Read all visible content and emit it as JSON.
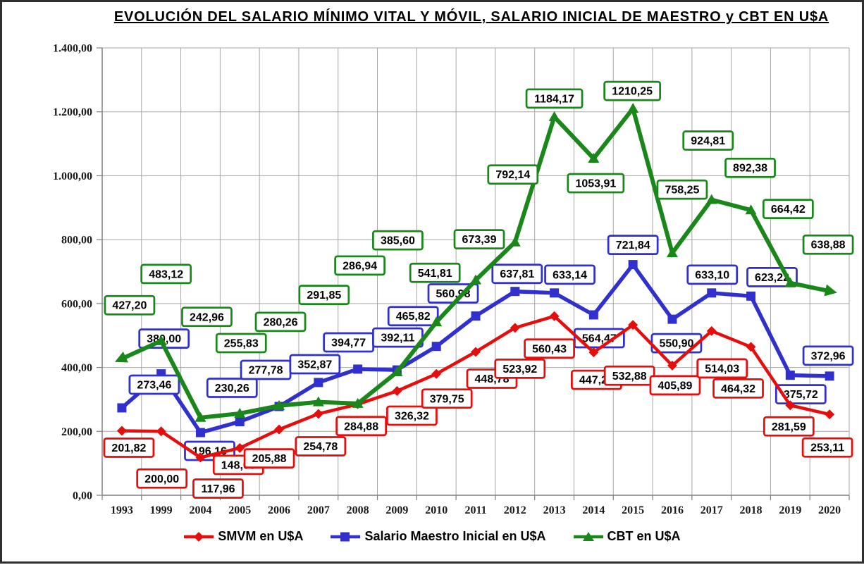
{
  "page": {
    "title": "EVOLUCIÓN DEL SALARIO MÍNIMO VITAL Y MÓVIL, SALARIO INICIAL DE MAESTRO y CBT EN U$A"
  },
  "chart_data": {
    "type": "line",
    "title": "EVOLUCIÓN DEL SALARIO MÍNIMO VITAL Y MÓVIL, SALARIO INICIAL DE MAESTRO y CBT EN U$A",
    "categories": [
      "1993",
      "1999",
      "2004",
      "2005",
      "2006",
      "2007",
      "2008",
      "2009",
      "2010",
      "2011",
      "2012",
      "2013",
      "2014",
      "2015",
      "2016",
      "2017",
      "2018",
      "2019",
      "2020"
    ],
    "series": [
      {
        "name": "SMVM en U$A",
        "color": "#e60d0d",
        "marker": "diamond",
        "values": [
          201.82,
          200.0,
          117.96,
          148.03,
          205.88,
          254.78,
          284.88,
          326.32,
          379.75,
          448.78,
          523.92,
          560.43,
          447.2,
          532.88,
          405.89,
          514.03,
          464.32,
          281.59,
          253.11
        ]
      },
      {
        "name": "Salario Maestro Inicial en U$A",
        "color": "#3030ce",
        "marker": "square",
        "values": [
          273.46,
          380.0,
          196.16,
          230.26,
          277.78,
          352.87,
          394.77,
          392.11,
          465.82,
          560.98,
          637.81,
          633.14,
          564.47,
          721.84,
          550.9,
          633.1,
          623.22,
          375.72,
          372.96
        ]
      },
      {
        "name": "CBT en U$A",
        "color": "#1a871a",
        "marker": "triangle",
        "values": [
          427.2,
          483.12,
          242.96,
          255.83,
          280.26,
          291.85,
          286.94,
          385.6,
          541.81,
          673.39,
          792.14,
          1184.17,
          1053.91,
          1210.25,
          758.25,
          924.81,
          892.38,
          664.42,
          638.88
        ]
      }
    ],
    "ylim": [
      0,
      1400
    ],
    "y_tick_interval": 200,
    "y_tick_labels": [
      "0,00",
      "200,00",
      "400,00",
      "600,00",
      "800,00",
      "1.000,00",
      "1.200,00",
      "1.400,00"
    ],
    "grid": true,
    "data_labels": true,
    "decimal_separator": ",",
    "legend_position": "bottom"
  }
}
